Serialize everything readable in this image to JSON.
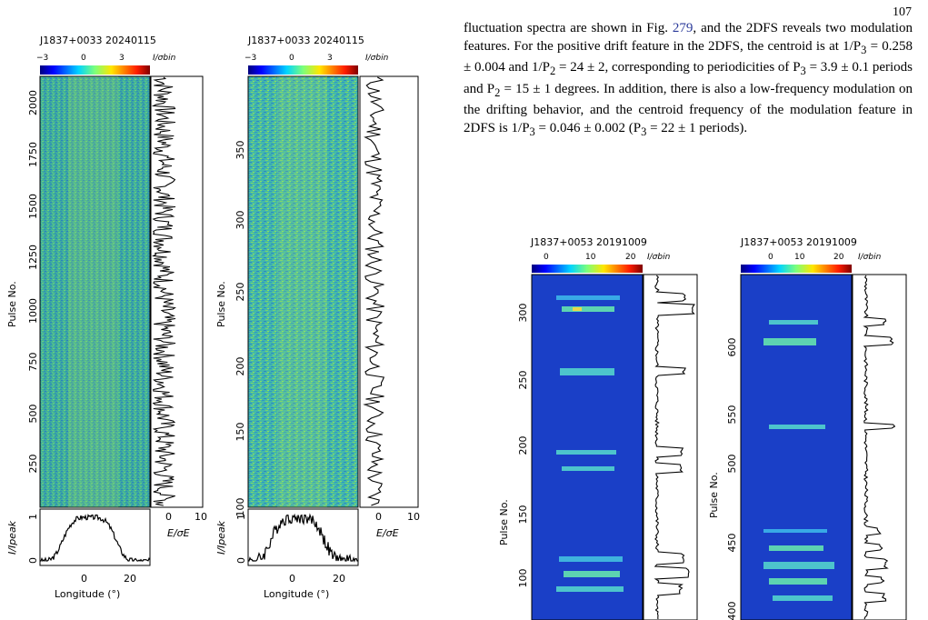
{
  "page_number": "107",
  "paragraph": {
    "line1": "fluctuation spectra are shown in Fig. ",
    "fig_ref": "279",
    "line1b": ", and the 2DFS reveals two modulation features. For the positive drift feature in the 2DFS, the centroid is at 1/P",
    "sub3": "3",
    "eq1": " = 0.258 ± 0.004 and 1/P",
    "sub2": "2",
    "eq2": " = 24 ± 2, corresponding to periodicities of P",
    "sub3b": "3",
    "eq3": " = 3.9 ± 0.1 periods and P",
    "sub2b": "2",
    "eq4": " = 15 ± 1 degrees. In addition, there is also a low-frequency modulation on the drifting behavior, and the centroid frequency of the modulation feature in 2DFS is 1/P",
    "sub3c": "3",
    "eq5": " = 0.046 ± 0.002 (P",
    "sub3d": "3",
    "eq6": " = 22 ± 1 periods)."
  },
  "figures": {
    "left": {
      "panel1_title": "J1837+0033  20240115",
      "panel2_title": "J1837+0033  20240115",
      "colorbar_ticks": [
        "−3",
        "0",
        "3"
      ],
      "colorbar_unit": "I/σbin",
      "panel1_yticks": [
        "250",
        "500",
        "750",
        "1000",
        "1250",
        "1500",
        "1750",
        "2000"
      ],
      "panel2_yticks": [
        "100",
        "150",
        "200",
        "250",
        "300",
        "350"
      ],
      "ylabel": "Pulse No.",
      "profile_ylabel": "I/Ipeak",
      "profile_yticks": [
        "0",
        "1"
      ],
      "xlabel": "Longitude (°)",
      "xticks": [
        "0",
        "20"
      ],
      "energy_xlabel": "E/σE",
      "energy_xticks": [
        "0",
        "10"
      ]
    },
    "right": {
      "panel1_title": "J1837+0053  20191009",
      "panel2_title": "J1837+0053  20191009",
      "colorbar_ticks": [
        "0",
        "10",
        "20"
      ],
      "colorbar_unit": "I/σbin",
      "panel1_yticks": [
        "100",
        "150",
        "200",
        "250",
        "300"
      ],
      "panel2_yticks": [
        "400",
        "450",
        "500",
        "550",
        "600"
      ],
      "ylabel": "Pulse No."
    }
  }
}
